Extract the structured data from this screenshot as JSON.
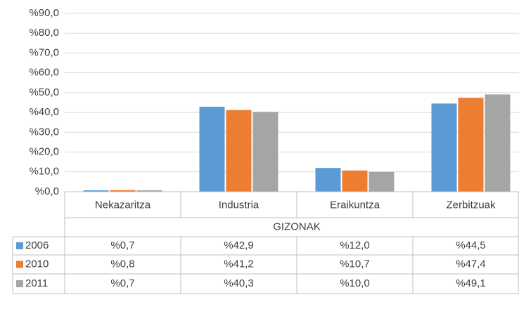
{
  "chart_data": {
    "type": "bar",
    "group_label": "GIZONAK",
    "categories": [
      "Nekazaritza",
      "Industria",
      "Eraikuntza",
      "Zerbitzuak"
    ],
    "series": [
      {
        "name": "2006",
        "color": "#5b9bd5",
        "values": [
          0.7,
          42.9,
          12.0,
          44.5
        ],
        "value_labels": [
          "%0,7",
          "%42,9",
          "%12,0",
          "%44,5"
        ]
      },
      {
        "name": "2010",
        "color": "#ed7d31",
        "values": [
          0.8,
          41.2,
          10.7,
          47.4
        ],
        "value_labels": [
          "%0,8",
          "%41,2",
          "%10,7",
          "%47,4"
        ]
      },
      {
        "name": "2011",
        "color": "#a5a5a5",
        "values": [
          0.7,
          40.3,
          10.0,
          49.1
        ],
        "value_labels": [
          "%0,7",
          "%40,3",
          "%10,0",
          "%49,1"
        ]
      }
    ],
    "ylim": [
      0,
      90
    ],
    "yticks": [
      {
        "value": 0,
        "label": "%0,0"
      },
      {
        "value": 10,
        "label": "%10,0"
      },
      {
        "value": 20,
        "label": "%20,0"
      },
      {
        "value": 30,
        "label": "%30,0"
      },
      {
        "value": 40,
        "label": "%40,0"
      },
      {
        "value": 50,
        "label": "%50,0"
      },
      {
        "value": 60,
        "label": "%60,0"
      },
      {
        "value": 70,
        "label": "%70,0"
      },
      {
        "value": 80,
        "label": "%80,0"
      },
      {
        "value": 90,
        "label": "%90,0"
      }
    ],
    "grid": true
  }
}
